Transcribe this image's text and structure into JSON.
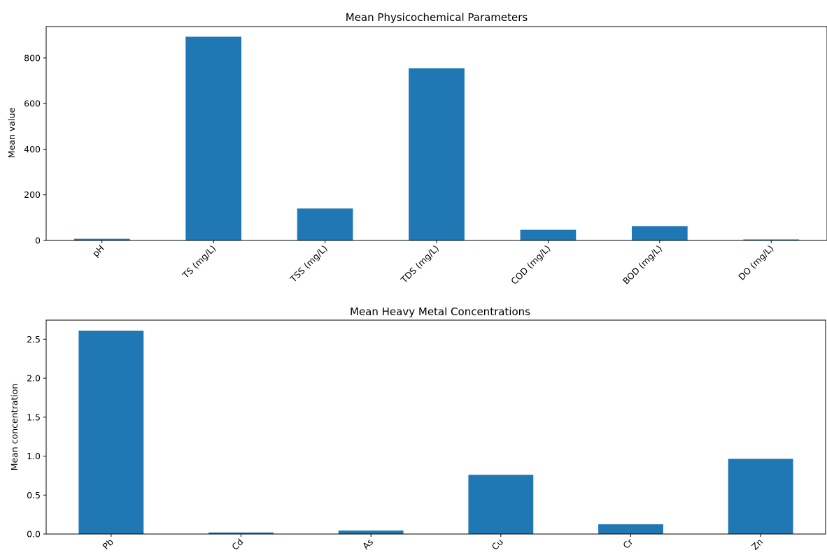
{
  "chart_data": [
    {
      "type": "bar",
      "title": "Mean Physicochemical Parameters",
      "xlabel": "",
      "ylabel": "Mean value",
      "categories": [
        "pH",
        "TS (mg/L)",
        "TSS (mg/L)",
        "TDS (mg/L)",
        "COD (mg/L)",
        "BOD (mg/L)",
        "DO (mg/L)"
      ],
      "values": [
        7.2,
        893,
        140,
        755,
        47,
        63,
        4.5
      ],
      "ylim": [
        0,
        937.5
      ],
      "yticks": [
        0,
        200,
        400,
        600,
        800
      ],
      "ytick_labels": [
        "0",
        "200",
        "400",
        "600",
        "800"
      ],
      "color": "#1f77b4",
      "grid": false
    },
    {
      "type": "bar",
      "title": "Mean Heavy Metal Concentrations",
      "xlabel": "",
      "ylabel": "Mean concentration",
      "categories": [
        "Pb",
        "Cd",
        "As",
        "Cu",
        "Cr",
        "Zn"
      ],
      "values": [
        2.61,
        0.02,
        0.045,
        0.76,
        0.125,
        0.965
      ],
      "ylim": [
        0,
        2.745
      ],
      "yticks": [
        0,
        0.5,
        1.0,
        1.5,
        2.0,
        2.5
      ],
      "ytick_labels": [
        "0.0",
        "0.5",
        "1.0",
        "1.5",
        "2.0",
        "2.5"
      ],
      "color": "#1f77b4",
      "grid": false
    }
  ]
}
